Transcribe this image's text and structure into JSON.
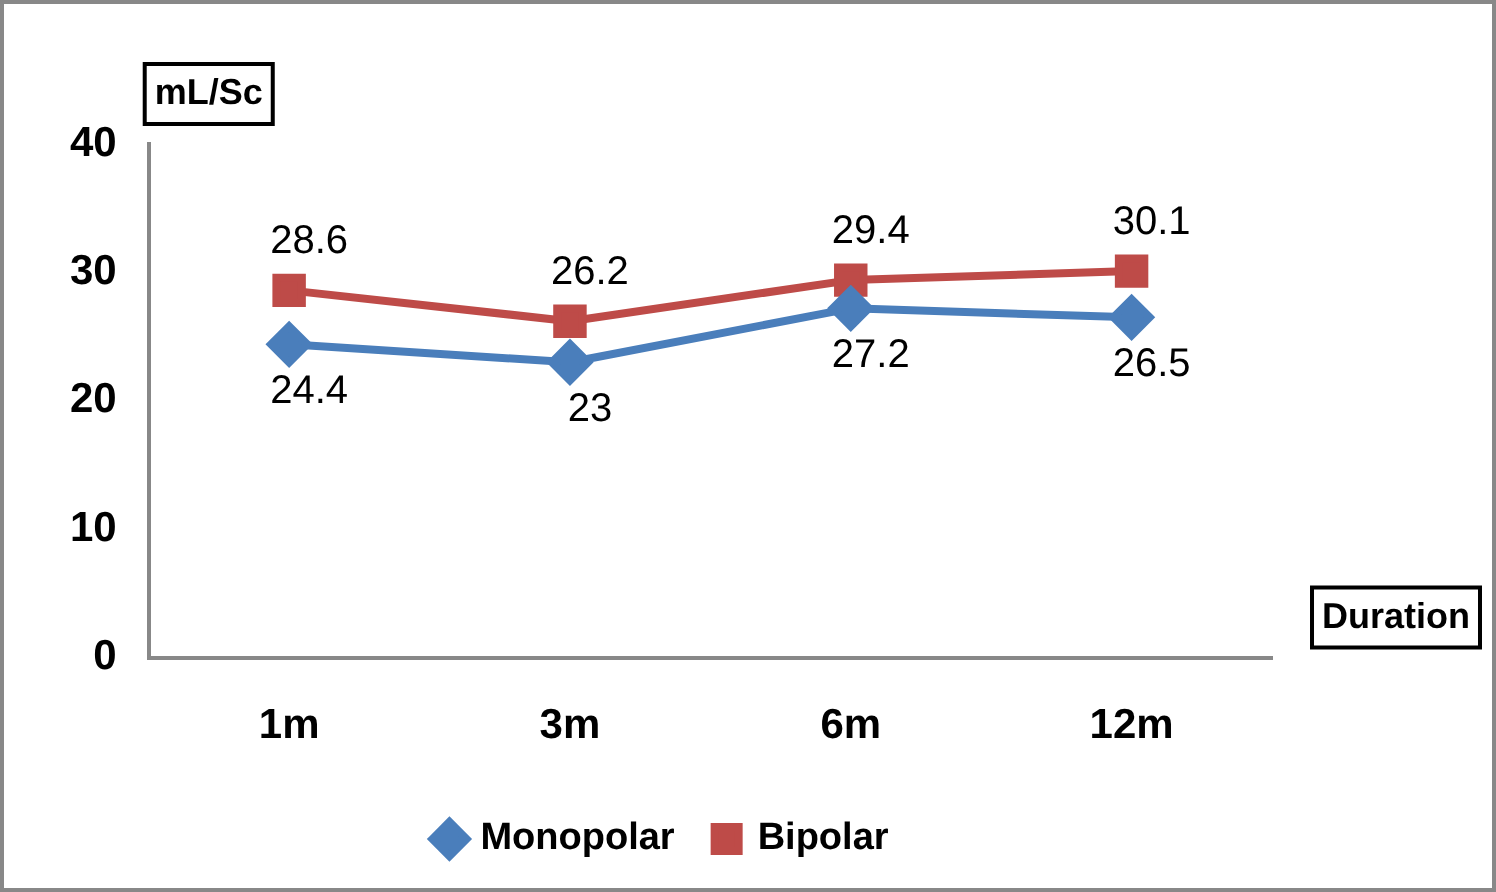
{
  "chart_data": {
    "type": "line",
    "ylabel": "mL/Sc",
    "xlabel": "Duration",
    "categories": [
      "1m",
      "3m",
      "6m",
      "12m"
    ],
    "series": [
      {
        "name": "Monopolar",
        "color": "#4a7ebb",
        "marker": "diamond",
        "values": [
          24.4,
          23,
          27.2,
          26.5
        ]
      },
      {
        "name": "Bipolar",
        "color": "#be4b48",
        "marker": "square",
        "values": [
          28.6,
          26.2,
          29.4,
          30.1
        ]
      }
    ],
    "ylim": [
      0,
      40
    ],
    "yticks": [
      0,
      10,
      20,
      30,
      40
    ],
    "grid": false,
    "legend": "bottom",
    "data_labels": true
  }
}
